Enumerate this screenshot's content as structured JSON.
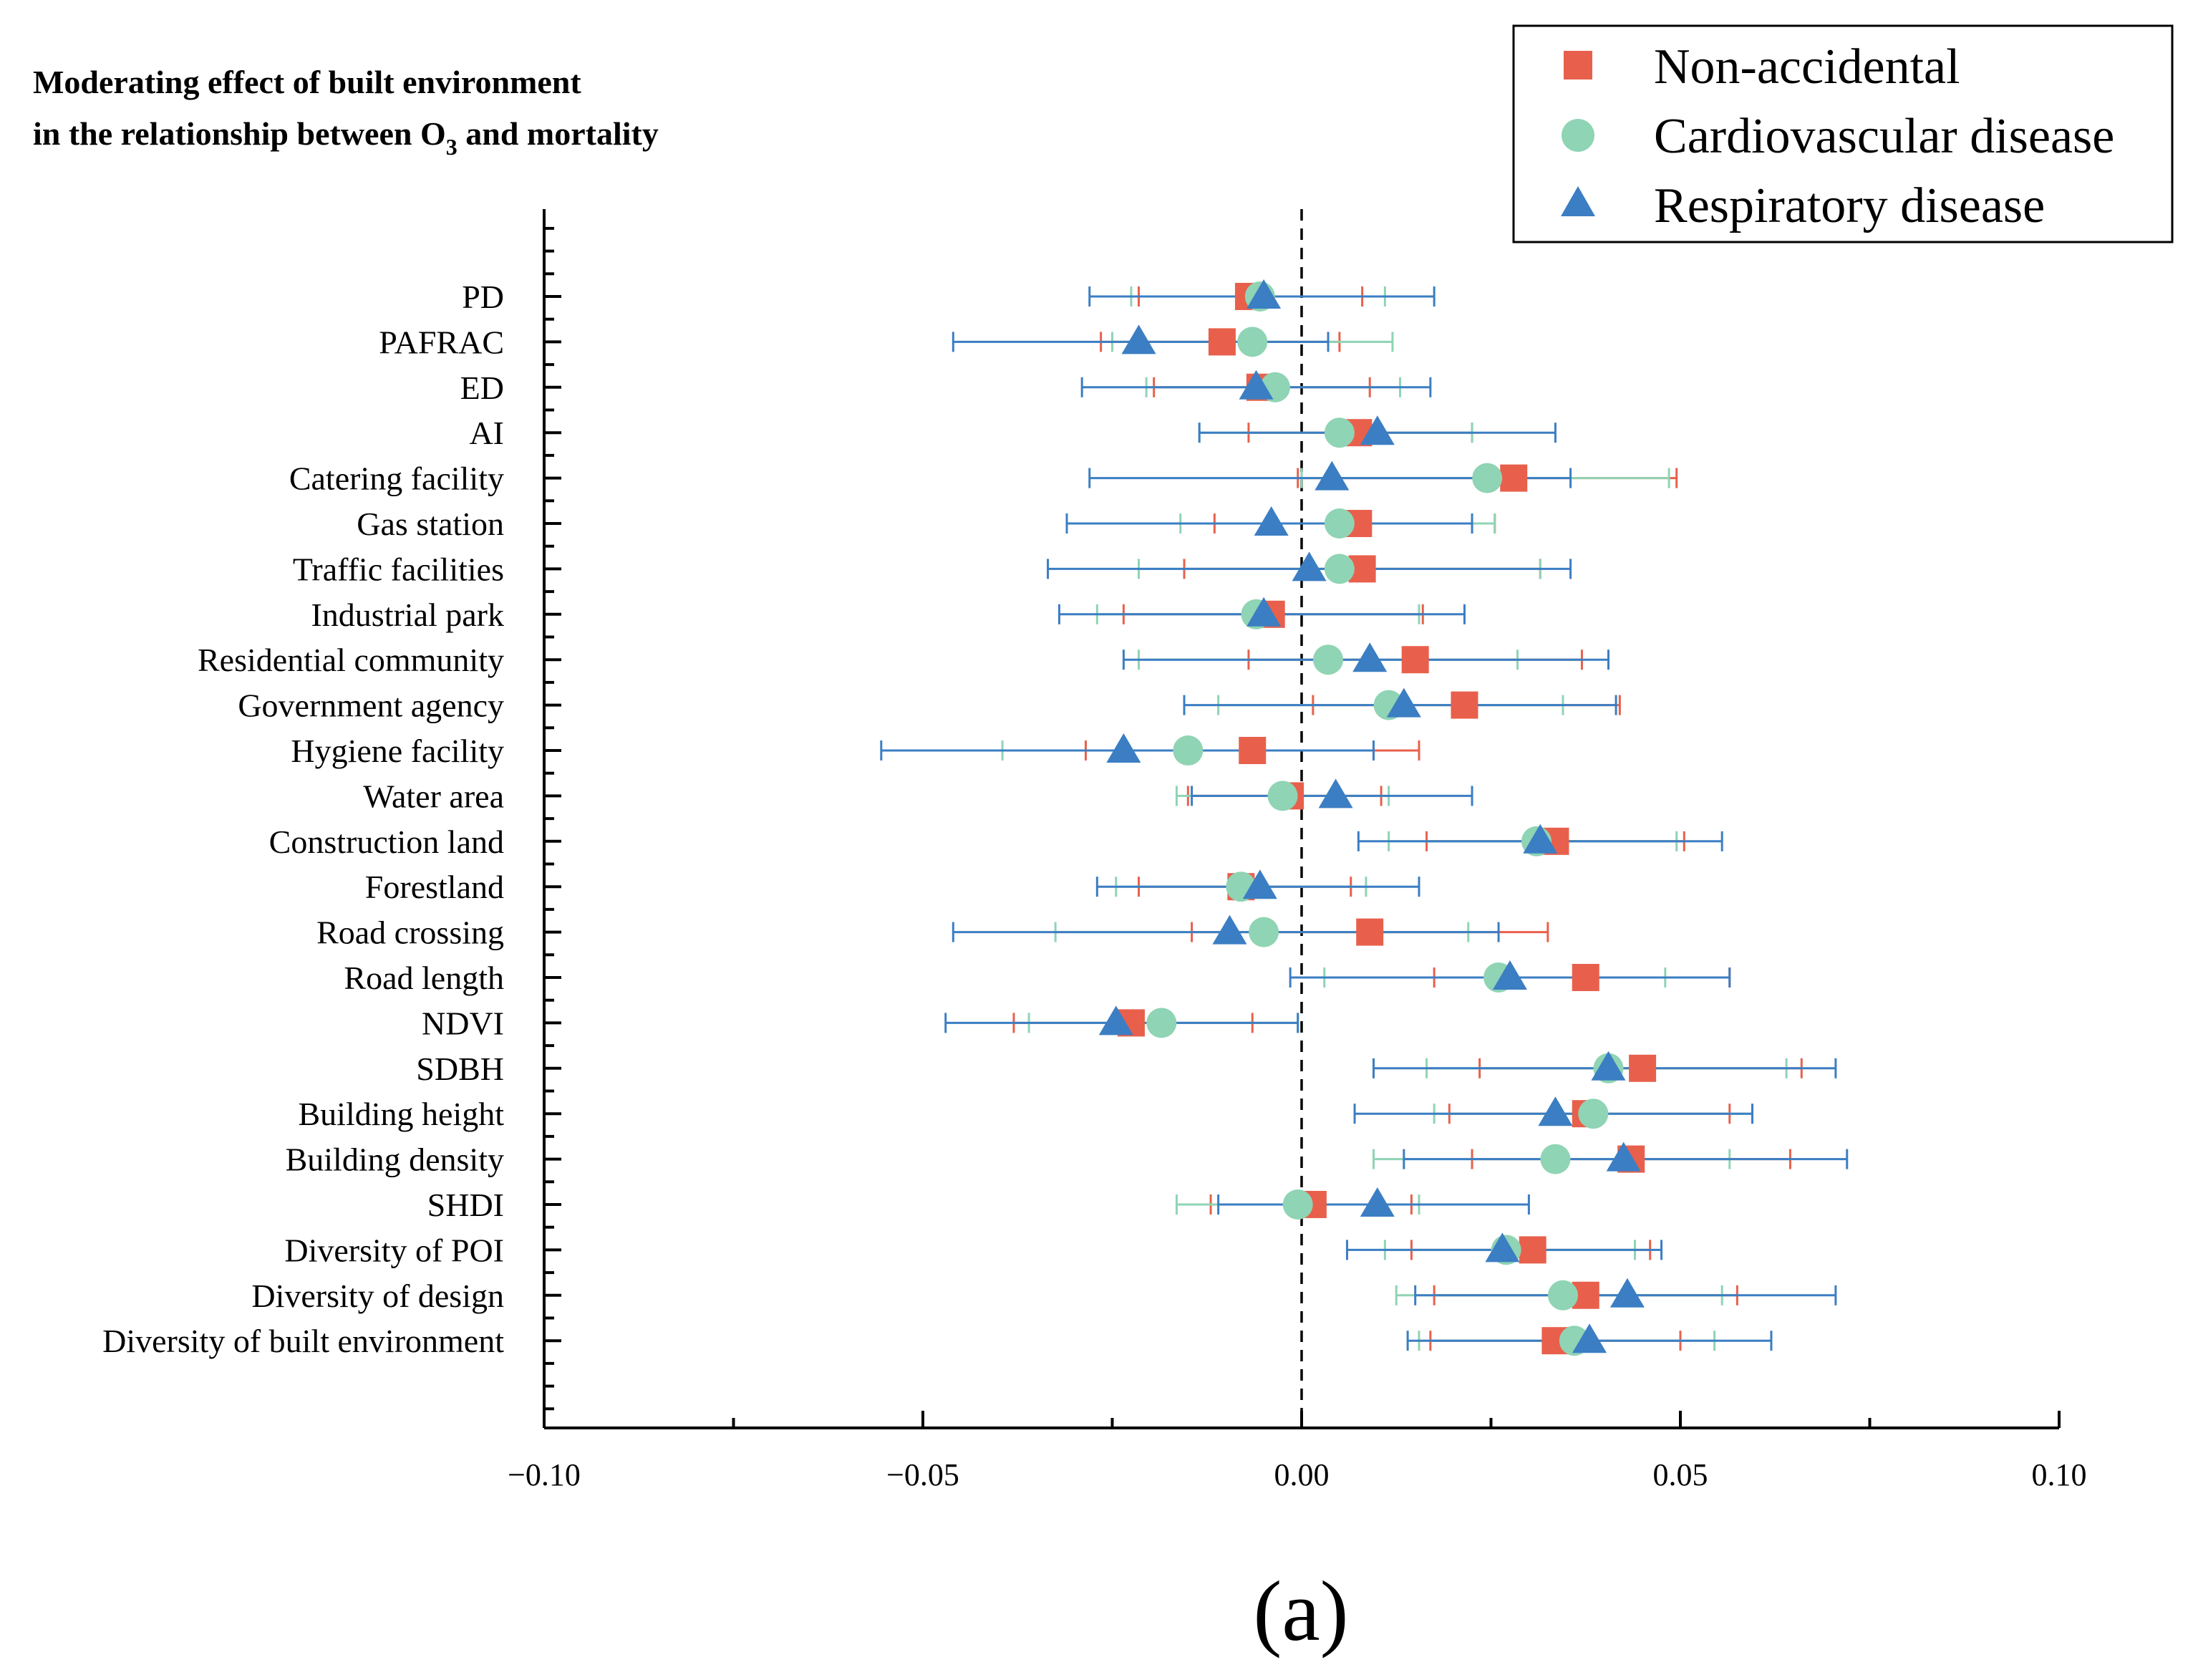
{
  "chart_data": {
    "type": "scatter",
    "title_line1": "Moderating effect of built environment",
    "title_line2_pre": "in the relationship between O",
    "title_line2_sub": "3",
    "title_line2_post": " and mortality",
    "xlabel": "",
    "ylabel": "",
    "xlim": [
      -0.1,
      0.1
    ],
    "xticks": [
      -0.1,
      -0.05,
      0.0,
      0.05,
      0.1
    ],
    "xtick_labels": [
      "−0.10",
      "−0.05",
      "0.00",
      "0.05",
      "0.10"
    ],
    "reference_line_x": 0.0,
    "categories": [
      "PD",
      "PAFRAC",
      "ED",
      "AI",
      "Catering facility",
      "Gas station",
      "Traffic facilities",
      "Industrial park",
      "Residential community",
      "Government agency",
      "Hygiene facility",
      "Water area",
      "Construction land",
      "Forestland",
      "Road crossing",
      "Road length",
      "NDVI",
      "SDBH",
      "Building height",
      "Building density",
      "SHDI",
      "Diversity of POI",
      "Diversity of design",
      "Diversity of built environment"
    ],
    "series": [
      {
        "name": "Non-accidental",
        "marker": "square",
        "color": "#E8604C",
        "values": [
          -0.007,
          -0.0105,
          -0.0055,
          0.0075,
          0.028,
          0.0075,
          0.008,
          -0.004,
          0.015,
          0.0215,
          -0.0065,
          -0.0015,
          0.0335,
          -0.008,
          0.009,
          0.0375,
          -0.0225,
          0.045,
          0.0375,
          0.0435,
          0.0015,
          0.0305,
          0.0375,
          0.0335
        ],
        "ci_low": [
          -0.0215,
          -0.0265,
          -0.0195,
          -0.007,
          -0.0005,
          -0.0115,
          -0.0155,
          -0.0235,
          -0.007,
          0.0015,
          -0.0285,
          -0.015,
          0.0165,
          -0.0215,
          -0.0145,
          0.0175,
          -0.038,
          0.0235,
          0.0195,
          0.0225,
          -0.012,
          0.0145,
          0.0175,
          0.017
        ],
        "ci_high": [
          0.008,
          0.005,
          0.009,
          0.0225,
          0.0495,
          0.0255,
          0.0315,
          0.016,
          0.037,
          0.042,
          0.0155,
          0.0105,
          0.0505,
          0.0065,
          0.0325,
          0.0565,
          -0.0065,
          0.066,
          0.0565,
          0.0645,
          0.0145,
          0.046,
          0.0575,
          0.05
        ]
      },
      {
        "name": "Cardiovascular disease",
        "marker": "circle",
        "color": "#8FD4B4",
        "values": [
          -0.0055,
          -0.0065,
          -0.0035,
          0.005,
          0.0245,
          0.005,
          0.005,
          -0.006,
          0.0035,
          0.0115,
          -0.015,
          -0.0025,
          0.031,
          -0.008,
          -0.005,
          0.026,
          -0.0185,
          0.0405,
          0.0385,
          0.0335,
          -0.0005,
          0.027,
          0.0345,
          0.036
        ],
        "ci_low": [
          -0.0225,
          -0.025,
          -0.0205,
          -0.0135,
          0.0,
          -0.016,
          -0.0215,
          -0.027,
          -0.0215,
          -0.011,
          -0.0395,
          -0.0165,
          0.0115,
          -0.0245,
          -0.0325,
          0.003,
          -0.036,
          0.0165,
          0.0175,
          0.0095,
          -0.0165,
          0.011,
          0.0125,
          0.0155
        ],
        "ci_high": [
          0.011,
          0.012,
          0.013,
          0.0225,
          0.0485,
          0.0255,
          0.0315,
          0.0155,
          0.0285,
          0.0345,
          0.0095,
          0.0115,
          0.0495,
          0.0085,
          0.022,
          0.048,
          -0.0005,
          0.064,
          0.0595,
          0.0565,
          0.0155,
          0.044,
          0.0555,
          0.0545
        ]
      },
      {
        "name": "Respiratory disease",
        "marker": "triangle",
        "color": "#3B7EC3",
        "values": [
          -0.005,
          -0.0215,
          -0.006,
          0.01,
          0.004,
          -0.004,
          0.001,
          -0.005,
          0.009,
          0.0135,
          -0.0235,
          0.0045,
          0.0315,
          -0.0055,
          -0.0095,
          0.0275,
          -0.0245,
          0.0405,
          0.0335,
          0.0425,
          0.01,
          0.0265,
          0.043,
          0.038
        ],
        "ci_low": [
          -0.028,
          -0.046,
          -0.029,
          -0.0135,
          -0.028,
          -0.031,
          -0.0335,
          -0.032,
          -0.0235,
          -0.0155,
          -0.0555,
          -0.0145,
          0.0075,
          -0.027,
          -0.046,
          -0.0015,
          -0.047,
          0.0095,
          0.007,
          0.0135,
          -0.011,
          0.006,
          0.015,
          0.014
        ],
        "ci_high": [
          0.0175,
          0.0035,
          0.017,
          0.0335,
          0.0355,
          0.0225,
          0.0355,
          0.0215,
          0.0405,
          0.0415,
          0.0095,
          0.0225,
          0.0555,
          0.0155,
          0.026,
          0.0565,
          -0.0005,
          0.0705,
          0.0595,
          0.072,
          0.03,
          0.0475,
          0.0705,
          0.062
        ]
      }
    ],
    "legend_position": "top-right",
    "grid": false,
    "caption": "(a)"
  }
}
